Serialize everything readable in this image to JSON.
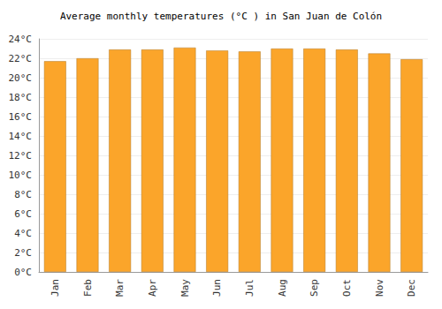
{
  "chart_data": {
    "type": "bar",
    "title": "Average monthly temperatures (°C ) in San Juan de Colón",
    "categories": [
      "Jan",
      "Feb",
      "Mar",
      "Apr",
      "May",
      "Jun",
      "Jul",
      "Aug",
      "Sep",
      "Oct",
      "Nov",
      "Dec"
    ],
    "values": [
      21.7,
      22.0,
      22.9,
      22.9,
      23.1,
      22.8,
      22.7,
      23.0,
      23.0,
      22.9,
      22.5,
      21.9
    ],
    "color": "#fba52a",
    "ylim": [
      0,
      24
    ],
    "yticks": [
      {
        "value": 0,
        "label": "0°C"
      },
      {
        "value": 2,
        "label": "2°C"
      },
      {
        "value": 4,
        "label": "4°C"
      },
      {
        "value": 6,
        "label": "6°C"
      },
      {
        "value": 8,
        "label": "8°C"
      },
      {
        "value": 10,
        "label": "10°C"
      },
      {
        "value": 12,
        "label": "12°C"
      },
      {
        "value": 14,
        "label": "14°C"
      },
      {
        "value": 16,
        "label": "16°C"
      },
      {
        "value": 18,
        "label": "18°C"
      },
      {
        "value": 20,
        "label": "20°C"
      },
      {
        "value": 22,
        "label": "22°C"
      },
      {
        "value": 24,
        "label": "24°C"
      }
    ],
    "grid": true
  }
}
